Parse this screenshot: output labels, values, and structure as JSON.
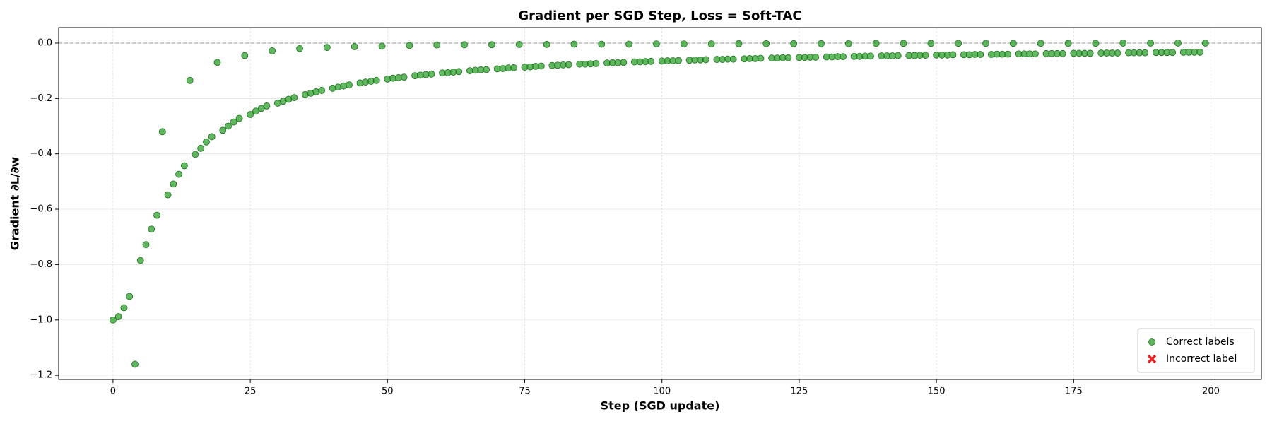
{
  "chart_data": {
    "type": "scatter",
    "title": "Gradient per SGD Step,  Loss = Soft-TAC",
    "x_label": "Step (SGD update)",
    "y_label": "Gradient ∂L/∂w",
    "xlim": [
      -9.9,
      209.2
    ],
    "ylim": [
      -1.215,
      0.056
    ],
    "xticks": [
      0,
      25,
      50,
      75,
      100,
      125,
      150,
      175,
      200
    ],
    "yticks": [
      {
        "value": -1.2,
        "label": "−1.2"
      },
      {
        "value": -1.0,
        "label": "−1.0"
      },
      {
        "value": -0.8,
        "label": "−0.8"
      },
      {
        "value": -0.6,
        "label": "−0.6"
      },
      {
        "value": -0.4,
        "label": "−0.4"
      },
      {
        "value": -0.2,
        "label": "−0.2"
      },
      {
        "value": 0,
        "label": "0.0"
      }
    ],
    "grid": true,
    "hline": 0,
    "legend_position": "lower right",
    "series": [
      {
        "name": "Correct labels",
        "color": "#2ca02c",
        "marker": "circle",
        "x": [
          0,
          1,
          2,
          3,
          4,
          5,
          6,
          7,
          8,
          9,
          10,
          11,
          12,
          13,
          14,
          15,
          16,
          17,
          18,
          19,
          20,
          21,
          22,
          23,
          24,
          25,
          26,
          27,
          28,
          29,
          30,
          31,
          32,
          33,
          34,
          35,
          36,
          37,
          38,
          39,
          40,
          41,
          42,
          43,
          44,
          45,
          46,
          47,
          48,
          49,
          50,
          51,
          52,
          53,
          54,
          55,
          56,
          57,
          58,
          59,
          60,
          61,
          62,
          63,
          64,
          65,
          66,
          67,
          68,
          69,
          70,
          71,
          72,
          73,
          74,
          75,
          76,
          77,
          78,
          79,
          80,
          81,
          82,
          83,
          84,
          85,
          86,
          87,
          88,
          89,
          90,
          91,
          92,
          93,
          94,
          95,
          96,
          97,
          98,
          99,
          100,
          101,
          102,
          103,
          104,
          105,
          106,
          107,
          108,
          109,
          110,
          111,
          112,
          113,
          114,
          115,
          116,
          117,
          118,
          119,
          120,
          121,
          122,
          123,
          124,
          125,
          126,
          127,
          128,
          129,
          130,
          131,
          132,
          133,
          134,
          135,
          136,
          137,
          138,
          139,
          140,
          141,
          142,
          143,
          144,
          145,
          146,
          147,
          148,
          149,
          150,
          151,
          152,
          153,
          154,
          155,
          156,
          157,
          158,
          159,
          160,
          161,
          162,
          163,
          164,
          165,
          166,
          167,
          168,
          169,
          170,
          171,
          172,
          173,
          174,
          175,
          176,
          177,
          178,
          179,
          180,
          181,
          182,
          183,
          184,
          185,
          186,
          187,
          188,
          189,
          190,
          191,
          192,
          193,
          194,
          195,
          196,
          197,
          198,
          199
        ],
        "values": [
          -1.0,
          -0.988,
          -0.956,
          -0.915,
          -1.16,
          -0.785,
          -0.728,
          -0.672,
          -0.622,
          -0.32,
          -0.548,
          -0.509,
          -0.474,
          -0.443,
          -0.135,
          -0.402,
          -0.38,
          -0.357,
          -0.338,
          -0.07,
          -0.315,
          -0.3,
          -0.285,
          -0.272,
          -0.045,
          -0.258,
          -0.246,
          -0.236,
          -0.227,
          -0.028,
          -0.217,
          -0.21,
          -0.203,
          -0.197,
          -0.02,
          -0.186,
          -0.181,
          -0.176,
          -0.171,
          -0.016,
          -0.163,
          -0.159,
          -0.155,
          -0.151,
          -0.013,
          -0.144,
          -0.141,
          -0.138,
          -0.135,
          -0.011,
          -0.13,
          -0.127,
          -0.125,
          -0.123,
          -0.009,
          -0.118,
          -0.116,
          -0.114,
          -0.112,
          -0.007,
          -0.108,
          -0.107,
          -0.105,
          -0.103,
          -0.006,
          -0.1,
          -0.098,
          -0.097,
          -0.096,
          -0.006,
          -0.093,
          -0.092,
          -0.09,
          -0.089,
          -0.005,
          -0.087,
          -0.086,
          -0.084,
          -0.083,
          -0.005,
          -0.081,
          -0.08,
          -0.079,
          -0.078,
          -0.004,
          -0.076,
          -0.076,
          -0.075,
          -0.074,
          -0.004,
          -0.072,
          -0.071,
          -0.071,
          -0.07,
          -0.004,
          -0.068,
          -0.068,
          -0.067,
          -0.066,
          -0.003,
          -0.065,
          -0.064,
          -0.064,
          -0.063,
          -0.003,
          -0.062,
          -0.061,
          -0.061,
          -0.06,
          -0.003,
          -0.059,
          -0.059,
          -0.058,
          -0.058,
          -0.002,
          -0.057,
          -0.056,
          -0.056,
          -0.055,
          -0.002,
          -0.054,
          -0.054,
          -0.053,
          -0.053,
          -0.002,
          -0.052,
          -0.052,
          -0.051,
          -0.051,
          -0.002,
          -0.05,
          -0.05,
          -0.049,
          -0.049,
          -0.002,
          -0.048,
          -0.048,
          -0.047,
          -0.047,
          -0.001,
          -0.046,
          -0.046,
          -0.046,
          -0.045,
          -0.001,
          -0.045,
          -0.045,
          -0.044,
          -0.044,
          -0.001,
          -0.043,
          -0.043,
          -0.043,
          -0.042,
          -0.001,
          -0.042,
          -0.042,
          -0.041,
          -0.041,
          -0.001,
          -0.041,
          -0.04,
          -0.04,
          -0.04,
          -0.001,
          -0.039,
          -0.039,
          -0.039,
          -0.039,
          -0.001,
          -0.038,
          -0.038,
          -0.038,
          -0.038,
          -0.001,
          -0.037,
          -0.037,
          -0.037,
          -0.037,
          -0.001,
          -0.036,
          -0.036,
          -0.036,
          -0.036,
          0,
          -0.035,
          -0.035,
          -0.035,
          -0.035,
          0,
          -0.034,
          -0.034,
          -0.034,
          -0.034,
          0,
          -0.033,
          -0.033,
          -0.033,
          -0.033,
          0
        ]
      },
      {
        "name": "Incorrect label",
        "color": "#ee2222",
        "marker": "x",
        "x": [],
        "values": []
      }
    ]
  }
}
